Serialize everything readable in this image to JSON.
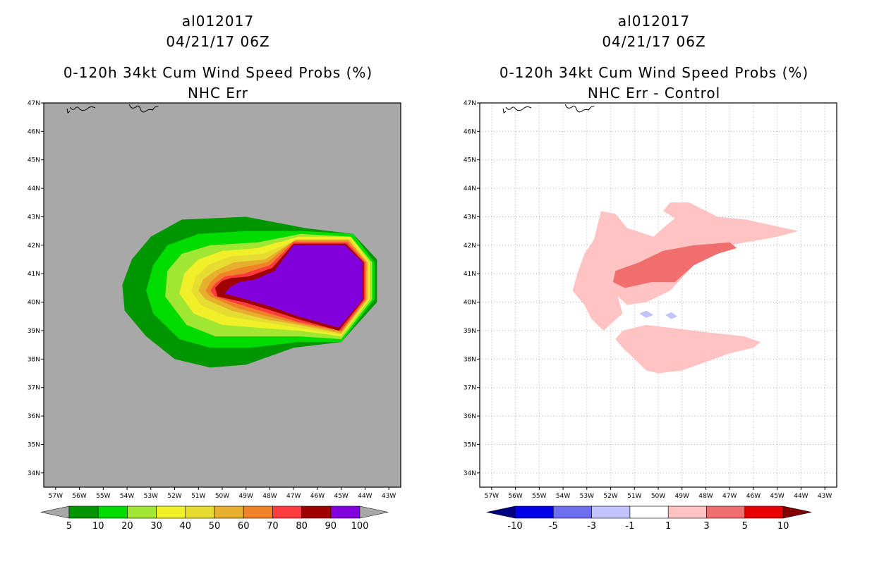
{
  "chart_data": [
    {
      "type": "heatmap",
      "title_lines": [
        "al012017",
        "04/21/17 06Z",
        "0-120h 34kt Cum Wind Speed Probs (%)",
        "NHC Err"
      ],
      "x_tick_labels": [
        "57W",
        "56W",
        "55W",
        "54W",
        "53W",
        "52W",
        "51W",
        "50W",
        "49W",
        "48W",
        "47W",
        "46W",
        "45W",
        "44W",
        "43W"
      ],
      "y_tick_labels": [
        "47N",
        "46N",
        "45N",
        "44N",
        "43N",
        "42N",
        "41N",
        "40N",
        "39N",
        "38N",
        "37N",
        "36N",
        "35N",
        "34N"
      ],
      "xlim": [
        -57.5,
        -42.5
      ],
      "ylim": [
        33.5,
        47.0
      ],
      "background_color": "#a8a8a8",
      "colorbar": {
        "labels": [
          "5",
          "10",
          "20",
          "30",
          "40",
          "50",
          "60",
          "70",
          "80",
          "90",
          "100"
        ],
        "levels": [
          5,
          10,
          20,
          30,
          40,
          50,
          60,
          70,
          80,
          90,
          100
        ],
        "colors": [
          "#009600",
          "#00dc00",
          "#a0e632",
          "#f0f028",
          "#e6dc32",
          "#e6af2d",
          "#f08228",
          "#fa3c3c",
          "#a00000",
          "#8200dc"
        ],
        "extend_colors": [
          "#a8a8a8",
          "#a8a8a8"
        ]
      },
      "contours": [
        {
          "level": 5,
          "color": "#009600",
          "points": [
            [
              -51.7,
              42.9
            ],
            [
              -49,
              43.0
            ],
            [
              -46.5,
              42.6
            ],
            [
              -44.5,
              42.4
            ],
            [
              -43.5,
              41.5
            ],
            [
              -43.5,
              40.0
            ],
            [
              -45,
              38.6
            ],
            [
              -47,
              38.4
            ],
            [
              -49,
              37.8
            ],
            [
              -50.5,
              37.7
            ],
            [
              -52,
              38.0
            ],
            [
              -53.2,
              38.8
            ],
            [
              -54.1,
              39.7
            ],
            [
              -54.2,
              40.6
            ],
            [
              -53.8,
              41.5
            ],
            [
              -53,
              42.3
            ]
          ]
        },
        {
          "level": 10,
          "color": "#00dc00",
          "points": [
            [
              -51,
              42.4
            ],
            [
              -49,
              42.5
            ],
            [
              -46.6,
              42.5
            ],
            [
              -44.5,
              42.4
            ],
            [
              -43.6,
              41.4
            ],
            [
              -43.6,
              40.1
            ],
            [
              -45,
              38.6
            ],
            [
              -46.8,
              38.6
            ],
            [
              -48.8,
              38.4
            ],
            [
              -50.5,
              38.4
            ],
            [
              -51.8,
              38.7
            ],
            [
              -52.9,
              39.6
            ],
            [
              -53.2,
              40.4
            ],
            [
              -52.9,
              41.3
            ],
            [
              -52.3,
              42.0
            ]
          ]
        },
        {
          "level": 20,
          "color": "#a0e632",
          "points": [
            [
              -50.5,
              42.0
            ],
            [
              -48.5,
              42.1
            ],
            [
              -46.7,
              42.4
            ],
            [
              -44.6,
              42.3
            ],
            [
              -43.7,
              41.4
            ],
            [
              -43.7,
              40.1
            ],
            [
              -45,
              38.7
            ],
            [
              -46.8,
              38.8
            ],
            [
              -48.5,
              38.8
            ],
            [
              -50.3,
              38.8
            ],
            [
              -51.5,
              39.2
            ],
            [
              -52.4,
              40.2
            ],
            [
              -52.3,
              41.1
            ],
            [
              -51.7,
              41.7
            ]
          ]
        },
        {
          "level": 30,
          "color": "#f0f028",
          "points": [
            [
              -50,
              41.8
            ],
            [
              -48.5,
              41.9
            ],
            [
              -46.8,
              42.3
            ],
            [
              -44.6,
              42.3
            ],
            [
              -43.8,
              41.4
            ],
            [
              -43.8,
              40.1
            ],
            [
              -45,
              38.8
            ],
            [
              -46.8,
              39.0
            ],
            [
              -48.5,
              39.1
            ],
            [
              -50,
              39.2
            ],
            [
              -51.2,
              39.6
            ],
            [
              -51.8,
              40.3
            ],
            [
              -51.6,
              41.0
            ],
            [
              -51,
              41.5
            ]
          ]
        },
        {
          "level": 40,
          "color": "#e6dc32",
          "points": [
            [
              -49.7,
              41.6
            ],
            [
              -48.3,
              41.7
            ],
            [
              -46.8,
              42.2
            ],
            [
              -44.6,
              42.2
            ],
            [
              -43.85,
              41.4
            ],
            [
              -43.85,
              40.1
            ],
            [
              -45,
              38.85
            ],
            [
              -46.8,
              39.1
            ],
            [
              -48.3,
              39.3
            ],
            [
              -49.8,
              39.5
            ],
            [
              -50.9,
              39.9
            ],
            [
              -51.3,
              40.4
            ],
            [
              -51.1,
              40.9
            ],
            [
              -50.6,
              41.3
            ]
          ]
        },
        {
          "level": 50,
          "color": "#e6af2d",
          "points": [
            [
              -49.5,
              41.4
            ],
            [
              -48.2,
              41.5
            ],
            [
              -46.9,
              42.2
            ],
            [
              -44.7,
              42.2
            ],
            [
              -43.9,
              41.4
            ],
            [
              -43.9,
              40.1
            ],
            [
              -45,
              38.9
            ],
            [
              -46.8,
              39.2
            ],
            [
              -48.2,
              39.4
            ],
            [
              -49.6,
              39.7
            ],
            [
              -50.7,
              40.1
            ],
            [
              -51,
              40.4
            ],
            [
              -50.8,
              40.8
            ],
            [
              -50.3,
              41.1
            ]
          ]
        },
        {
          "level": 60,
          "color": "#f08228",
          "points": [
            [
              -49.3,
              41.2
            ],
            [
              -48.1,
              41.4
            ],
            [
              -47,
              42.15
            ],
            [
              -44.7,
              42.15
            ],
            [
              -43.95,
              41.4
            ],
            [
              -43.95,
              40.1
            ],
            [
              -45,
              38.95
            ],
            [
              -46.8,
              39.25
            ],
            [
              -48.1,
              39.5
            ],
            [
              -49.4,
              39.8
            ],
            [
              -50.5,
              40.2
            ],
            [
              -50.7,
              40.4
            ],
            [
              -50.5,
              40.7
            ],
            [
              -50.1,
              41.0
            ]
          ]
        },
        {
          "level": 70,
          "color": "#fa3c3c",
          "points": [
            [
              -49.1,
              41.0
            ],
            [
              -48.0,
              41.3
            ],
            [
              -47,
              42.1
            ],
            [
              -44.75,
              42.1
            ],
            [
              -44.0,
              41.4
            ],
            [
              -44.0,
              40.1
            ],
            [
              -45,
              39.0
            ],
            [
              -46.8,
              39.3
            ],
            [
              -48,
              39.6
            ],
            [
              -49.2,
              39.9
            ],
            [
              -50.3,
              40.2
            ],
            [
              -50.5,
              40.4
            ],
            [
              -50.3,
              40.65
            ],
            [
              -49.9,
              40.9
            ]
          ]
        },
        {
          "level": 80,
          "color": "#a00000",
          "points": [
            [
              -48.9,
              40.9
            ],
            [
              -47.9,
              41.2
            ],
            [
              -47,
              42.05
            ],
            [
              -44.8,
              42.05
            ],
            [
              -44.05,
              41.4
            ],
            [
              -44.05,
              40.1
            ],
            [
              -45.1,
              39.0
            ],
            [
              -46.8,
              39.4
            ],
            [
              -47.9,
              39.7
            ],
            [
              -49.1,
              40.0
            ],
            [
              -50.2,
              40.2
            ],
            [
              -50.3,
              40.5
            ],
            [
              -50.0,
              40.75
            ],
            [
              -49.6,
              40.85
            ]
          ]
        },
        {
          "level": 90,
          "color": "#8200dc",
          "points": [
            [
              -48.6,
              40.8
            ],
            [
              -47.8,
              41.1
            ],
            [
              -47,
              42.0
            ],
            [
              -44.85,
              42.0
            ],
            [
              -44.1,
              41.4
            ],
            [
              -44.1,
              40.1
            ],
            [
              -45.1,
              39.1
            ],
            [
              -46.8,
              39.5
            ],
            [
              -47.8,
              39.8
            ],
            [
              -49,
              40.1
            ],
            [
              -49.9,
              40.3
            ],
            [
              -49.7,
              40.5
            ],
            [
              -49.3,
              40.7
            ]
          ]
        }
      ]
    },
    {
      "type": "heatmap",
      "title_lines": [
        "al012017",
        "04/21/17 06Z",
        "0-120h 34kt Cum Wind Speed Probs (%)",
        "NHC Err - Control"
      ],
      "x_tick_labels": [
        "57W",
        "56W",
        "55W",
        "54W",
        "53W",
        "52W",
        "51W",
        "50W",
        "49W",
        "48W",
        "47W",
        "46W",
        "45W",
        "44W",
        "43W"
      ],
      "y_tick_labels": [
        "47N",
        "46N",
        "45N",
        "44N",
        "43N",
        "42N",
        "41N",
        "40N",
        "39N",
        "38N",
        "37N",
        "36N",
        "35N",
        "34N"
      ],
      "xlim": [
        -57.5,
        -42.5
      ],
      "ylim": [
        33.5,
        47.0
      ],
      "background_color": "#ffffff",
      "grid": true,
      "colorbar": {
        "labels": [
          "-10",
          "-5",
          "-3",
          "-1",
          "1",
          "3",
          "5",
          "10"
        ],
        "levels": [
          -10,
          -5,
          -3,
          -1,
          1,
          3,
          5,
          10
        ],
        "colors": [
          "#0000e6",
          "#6e6ef0",
          "#c3c3ff",
          "#ffffff",
          "#ffc3c3",
          "#f06e6e",
          "#e60000"
        ],
        "extend_colors": [
          "#000082",
          "#820000"
        ]
      },
      "contours": [
        {
          "level": 1,
          "color": "#ffc3c3",
          "points": [
            [
              -52.4,
              43.2
            ],
            [
              -51.8,
              43.1
            ],
            [
              -51.3,
              42.6
            ],
            [
              -50.2,
              42.3
            ],
            [
              -49.8,
              42.6
            ],
            [
              -49.3,
              42.95
            ],
            [
              -49.8,
              43.2
            ],
            [
              -49.5,
              43.5
            ],
            [
              -48.7,
              43.5
            ],
            [
              -47.5,
              43.0
            ],
            [
              -46.3,
              42.9
            ],
            [
              -45.2,
              42.7
            ],
            [
              -44.1,
              42.5
            ],
            [
              -45,
              42.3
            ],
            [
              -47,
              42.0
            ],
            [
              -48.5,
              41.3
            ],
            [
              -49.5,
              40.4
            ],
            [
              -50.5,
              40.0
            ],
            [
              -51.3,
              39.9
            ],
            [
              -51.7,
              40.2
            ],
            [
              -51.5,
              39.6
            ],
            [
              -52.3,
              39.0
            ],
            [
              -52.8,
              39.4
            ],
            [
              -53.1,
              39.9
            ],
            [
              -53.6,
              40.4
            ],
            [
              -53.4,
              41.0
            ],
            [
              -53.1,
              41.7
            ],
            [
              -52.7,
              42.2
            ]
          ]
        },
        {
          "level": 1,
          "color": "#ffc3c3",
          "points": [
            [
              -51.5,
              39.0
            ],
            [
              -50.5,
              39.2
            ],
            [
              -48.5,
              39.0
            ],
            [
              -47.5,
              38.9
            ],
            [
              -46.4,
              38.8
            ],
            [
              -45.7,
              38.6
            ],
            [
              -46,
              38.4
            ],
            [
              -47,
              38.2
            ],
            [
              -48,
              37.9
            ],
            [
              -49,
              37.6
            ],
            [
              -50,
              37.5
            ],
            [
              -50.5,
              37.6
            ],
            [
              -51,
              38.0
            ],
            [
              -51.5,
              38.4
            ],
            [
              -51.8,
              38.7
            ]
          ]
        },
        {
          "level": 3,
          "color": "#f06e6e",
          "points": [
            [
              -50.8,
              41.4
            ],
            [
              -49.8,
              41.8
            ],
            [
              -48.5,
              42.0
            ],
            [
              -47,
              42.1
            ],
            [
              -46.7,
              41.9
            ],
            [
              -47.5,
              41.7
            ],
            [
              -48.5,
              41.3
            ],
            [
              -49.3,
              40.7
            ],
            [
              -50.3,
              40.7
            ],
            [
              -51.4,
              40.5
            ],
            [
              -51.9,
              40.7
            ],
            [
              -51.8,
              41.1
            ]
          ]
        },
        {
          "level": -1,
          "color": "#c3c3ff",
          "points": [
            [
              -50.8,
              39.6
            ],
            [
              -50.5,
              39.7
            ],
            [
              -50.2,
              39.55
            ],
            [
              -50.5,
              39.45
            ]
          ]
        },
        {
          "level": -1,
          "color": "#c3c3ff",
          "points": [
            [
              -49.7,
              39.55
            ],
            [
              -49.45,
              39.65
            ],
            [
              -49.2,
              39.5
            ],
            [
              -49.45,
              39.4
            ]
          ]
        }
      ]
    }
  ]
}
